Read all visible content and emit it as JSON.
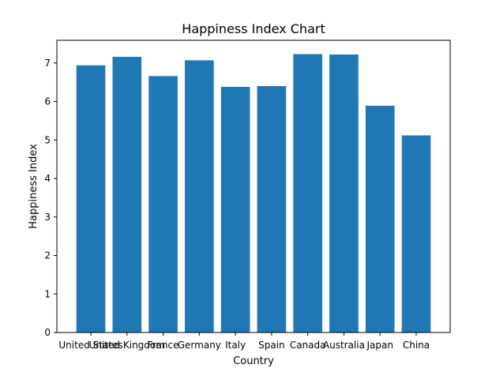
{
  "chart_data": {
    "type": "bar",
    "title": "Happiness Index Chart",
    "xlabel": "Country",
    "ylabel": "Happiness Index",
    "categories": [
      "United States",
      "United Kingdom",
      "France",
      "Germany",
      "Italy",
      "Spain",
      "Canada",
      "Australia",
      "Japan",
      "China"
    ],
    "values": [
      6.94,
      7.16,
      6.66,
      7.07,
      6.38,
      6.4,
      7.23,
      7.22,
      5.89,
      5.12
    ],
    "ylim": [
      0,
      7.59
    ],
    "yticks": [
      0,
      1,
      2,
      3,
      4,
      5,
      6,
      7
    ],
    "bar_color": "#1f77b4",
    "grid": false,
    "legend": "none"
  }
}
